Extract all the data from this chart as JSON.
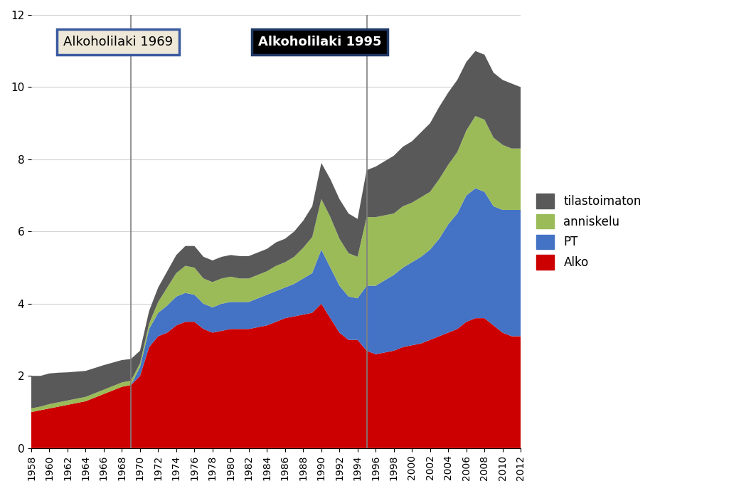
{
  "years": [
    1958,
    1959,
    1960,
    1961,
    1962,
    1963,
    1964,
    1965,
    1966,
    1967,
    1968,
    1969,
    1970,
    1971,
    1972,
    1973,
    1974,
    1975,
    1976,
    1977,
    1978,
    1979,
    1980,
    1981,
    1982,
    1983,
    1984,
    1985,
    1986,
    1987,
    1988,
    1989,
    1990,
    1991,
    1992,
    1993,
    1994,
    1995,
    1996,
    1997,
    1998,
    1999,
    2000,
    2001,
    2002,
    2003,
    2004,
    2005,
    2006,
    2007,
    2008,
    2009,
    2010,
    2011,
    2012
  ],
  "alko": [
    1.0,
    1.05,
    1.1,
    1.15,
    1.2,
    1.25,
    1.3,
    1.4,
    1.5,
    1.6,
    1.7,
    1.75,
    2.0,
    2.8,
    3.1,
    3.2,
    3.4,
    3.5,
    3.5,
    3.3,
    3.2,
    3.25,
    3.3,
    3.3,
    3.3,
    3.35,
    3.4,
    3.5,
    3.6,
    3.65,
    3.7,
    3.75,
    4.0,
    3.6,
    3.2,
    3.0,
    3.0,
    2.7,
    2.6,
    2.65,
    2.7,
    2.8,
    2.85,
    2.9,
    3.0,
    3.1,
    3.2,
    3.3,
    3.5,
    3.6,
    3.6,
    3.4,
    3.2,
    3.1,
    3.1
  ],
  "pt": [
    0.0,
    0.0,
    0.0,
    0.0,
    0.0,
    0.0,
    0.0,
    0.0,
    0.0,
    0.0,
    0.0,
    0.0,
    0.25,
    0.5,
    0.65,
    0.75,
    0.8,
    0.8,
    0.75,
    0.7,
    0.7,
    0.75,
    0.75,
    0.75,
    0.75,
    0.8,
    0.85,
    0.85,
    0.85,
    0.9,
    1.0,
    1.1,
    1.5,
    1.4,
    1.3,
    1.2,
    1.15,
    1.8,
    1.9,
    2.0,
    2.1,
    2.2,
    2.3,
    2.4,
    2.5,
    2.7,
    3.0,
    3.2,
    3.5,
    3.6,
    3.5,
    3.3,
    3.4,
    3.5,
    3.5
  ],
  "anniskelu": [
    0.1,
    0.1,
    0.12,
    0.12,
    0.12,
    0.12,
    0.12,
    0.12,
    0.12,
    0.12,
    0.12,
    0.12,
    0.1,
    0.15,
    0.3,
    0.5,
    0.65,
    0.75,
    0.75,
    0.7,
    0.7,
    0.7,
    0.7,
    0.65,
    0.65,
    0.65,
    0.65,
    0.7,
    0.7,
    0.75,
    0.85,
    1.0,
    1.4,
    1.4,
    1.3,
    1.2,
    1.15,
    1.9,
    1.9,
    1.8,
    1.7,
    1.7,
    1.65,
    1.65,
    1.6,
    1.65,
    1.65,
    1.7,
    1.8,
    2.0,
    2.0,
    1.9,
    1.8,
    1.7,
    1.7
  ],
  "tilastoimaton": [
    0.9,
    0.85,
    0.85,
    0.82,
    0.78,
    0.75,
    0.72,
    0.7,
    0.68,
    0.65,
    0.62,
    0.6,
    0.35,
    0.35,
    0.4,
    0.45,
    0.5,
    0.55,
    0.6,
    0.6,
    0.6,
    0.6,
    0.6,
    0.62,
    0.62,
    0.62,
    0.62,
    0.65,
    0.65,
    0.7,
    0.75,
    0.85,
    1.0,
    1.05,
    1.1,
    1.1,
    1.05,
    1.3,
    1.4,
    1.5,
    1.6,
    1.65,
    1.7,
    1.8,
    1.9,
    2.0,
    2.0,
    2.0,
    1.9,
    1.8,
    1.8,
    1.8,
    1.8,
    1.8,
    1.7
  ],
  "color_alko": "#cc0000",
  "color_pt": "#4472c4",
  "color_anniskelu": "#9bbb59",
  "color_tilastoimaton": "#595959",
  "vline1_year": 1969,
  "vline2_year": 1995,
  "label1": "Alkoholilaki 1969",
  "label2": "Alkoholilaki 1995",
  "ylim": [
    0,
    12
  ],
  "yticks": [
    0,
    2,
    4,
    6,
    8,
    10,
    12
  ],
  "box1_facecolor": "#ede8d8",
  "box1_edgecolor": "#3a5aa0",
  "box2_facecolor": "#000000",
  "box2_edgecolor": "#1f3864"
}
